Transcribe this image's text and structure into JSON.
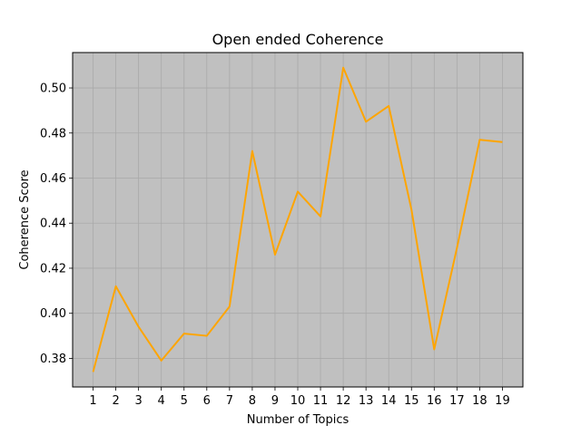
{
  "chart_data": {
    "type": "line",
    "title": "Open ended Coherence",
    "xlabel": "Number of Topics",
    "ylabel": "Coherence Score",
    "x": [
      1,
      2,
      3,
      4,
      5,
      6,
      7,
      8,
      9,
      10,
      11,
      12,
      13,
      14,
      15,
      16,
      17,
      18,
      19
    ],
    "series": [
      {
        "color": "#ffa500",
        "values": [
          0.374,
          0.412,
          0.394,
          0.379,
          0.391,
          0.39,
          0.403,
          0.472,
          0.426,
          0.454,
          0.443,
          0.509,
          0.485,
          0.492,
          0.446,
          0.384,
          0.429,
          0.477,
          0.476
        ]
      }
    ],
    "xticks": [
      "1",
      "2",
      "3",
      "4",
      "5",
      "6",
      "7",
      "8",
      "9",
      "10",
      "11",
      "12",
      "13",
      "14",
      "15",
      "16",
      "17",
      "18",
      "19"
    ],
    "yticks": [
      0.38,
      0.4,
      0.42,
      0.44,
      0.46,
      0.48,
      0.5
    ],
    "ytick_labels": [
      "0.38",
      "0.40",
      "0.42",
      "0.44",
      "0.46",
      "0.48",
      "0.50"
    ],
    "xlim": [
      0.1,
      19.9
    ],
    "ylim": [
      0.3673,
      0.5157
    ],
    "grid": true,
    "plot_background": "#c0c0c0",
    "grid_color": "#a9a9a9"
  }
}
